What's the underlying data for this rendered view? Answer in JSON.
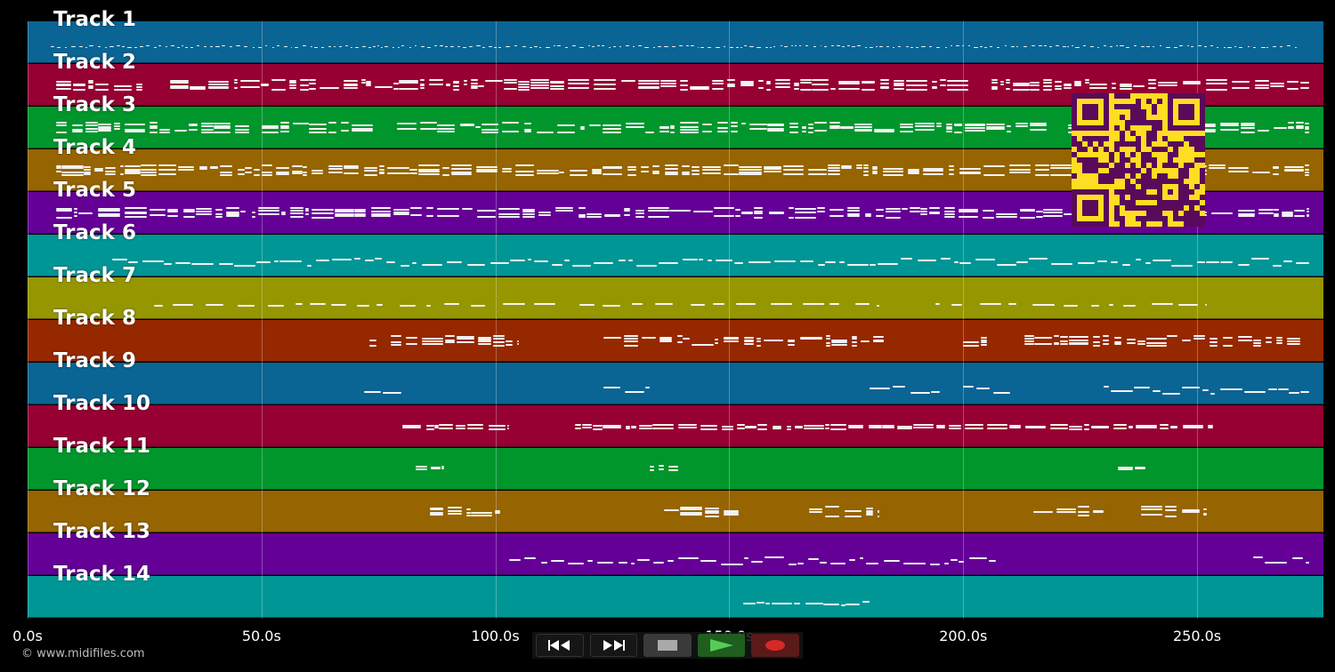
{
  "tracks": [
    {
      "name": "Track 1",
      "color": "#0a6494"
    },
    {
      "name": "Track 2",
      "color": "#960032"
    },
    {
      "name": "Track 3",
      "color": "#00962c"
    },
    {
      "name": "Track 4",
      "color": "#966400"
    },
    {
      "name": "Track 5",
      "color": "#640096"
    },
    {
      "name": "Track 6",
      "color": "#009696"
    },
    {
      "name": "Track 7",
      "color": "#969600"
    },
    {
      "name": "Track 8",
      "color": "#962800"
    },
    {
      "name": "Track 9",
      "color": "#0a6494"
    },
    {
      "name": "Track 10",
      "color": "#960032"
    },
    {
      "name": "Track 11",
      "color": "#00962c"
    },
    {
      "name": "Track 12",
      "color": "#966400"
    },
    {
      "name": "Track 13",
      "color": "#640096"
    },
    {
      "name": "Track 14",
      "color": "#009696"
    }
  ],
  "time_axis": {
    "unit": "s",
    "ticks": [
      "0.0s",
      "50.0s",
      "100.0s",
      "150.0s",
      "200.0s",
      "250.0s"
    ],
    "tick_values": [
      0,
      50,
      100,
      150,
      200,
      250
    ],
    "range": [
      0,
      277
    ]
  },
  "footer": {
    "copyright": "© www.midifiles.com"
  },
  "transport": {
    "buttons": [
      {
        "name": "rewind",
        "icon": "rewind-icon"
      },
      {
        "name": "fast-forward",
        "icon": "fast-forward-icon"
      },
      {
        "name": "stop",
        "icon": "stop-icon"
      },
      {
        "name": "play",
        "icon": "play-icon"
      },
      {
        "name": "record",
        "icon": "record-icon"
      }
    ]
  },
  "overlay": {
    "qr_code": {
      "color": "#ffdd22",
      "module_color": "#5a0a5a"
    }
  },
  "colors": {
    "background": "#000000",
    "note": "#f2f2f2"
  },
  "notes_activity": [
    {
      "track": 1,
      "segments": [
        [
          5,
          272
        ]
      ]
    },
    {
      "track": 2,
      "segments": [
        [
          6,
          274
        ]
      ]
    },
    {
      "track": 3,
      "segments": [
        [
          6,
          274
        ]
      ]
    },
    {
      "track": 4,
      "segments": [
        [
          6,
          274
        ]
      ]
    },
    {
      "track": 5,
      "segments": [
        [
          6,
          274
        ]
      ]
    },
    {
      "track": 6,
      "segments": [
        [
          18,
          274
        ]
      ]
    },
    {
      "track": 7,
      "segments": [
        [
          27,
          113
        ],
        [
          118,
          182
        ],
        [
          194,
          252
        ]
      ]
    },
    {
      "track": 8,
      "segments": [
        [
          73,
          105
        ],
        [
          123,
          183
        ],
        [
          200,
          205
        ],
        [
          213,
          272
        ]
      ]
    },
    {
      "track": 9,
      "segments": [
        [
          72,
          80
        ],
        [
          123,
          133
        ],
        [
          180,
          195
        ],
        [
          200,
          210
        ],
        [
          230,
          274
        ]
      ]
    },
    {
      "track": 10,
      "segments": [
        [
          80,
          103
        ],
        [
          117,
          254
        ]
      ]
    },
    {
      "track": 11,
      "segments": [
        [
          83,
          89
        ],
        [
          133,
          139
        ],
        [
          233,
          239
        ]
      ]
    },
    {
      "track": 12,
      "segments": [
        [
          86,
          101
        ],
        [
          136,
          152
        ],
        [
          167,
          182
        ],
        [
          215,
          230
        ],
        [
          238,
          252
        ]
      ]
    },
    {
      "track": 13,
      "segments": [
        [
          103,
          207
        ],
        [
          262,
          274
        ]
      ]
    },
    {
      "track": 14,
      "segments": [
        [
          153,
          180
        ]
      ]
    }
  ]
}
